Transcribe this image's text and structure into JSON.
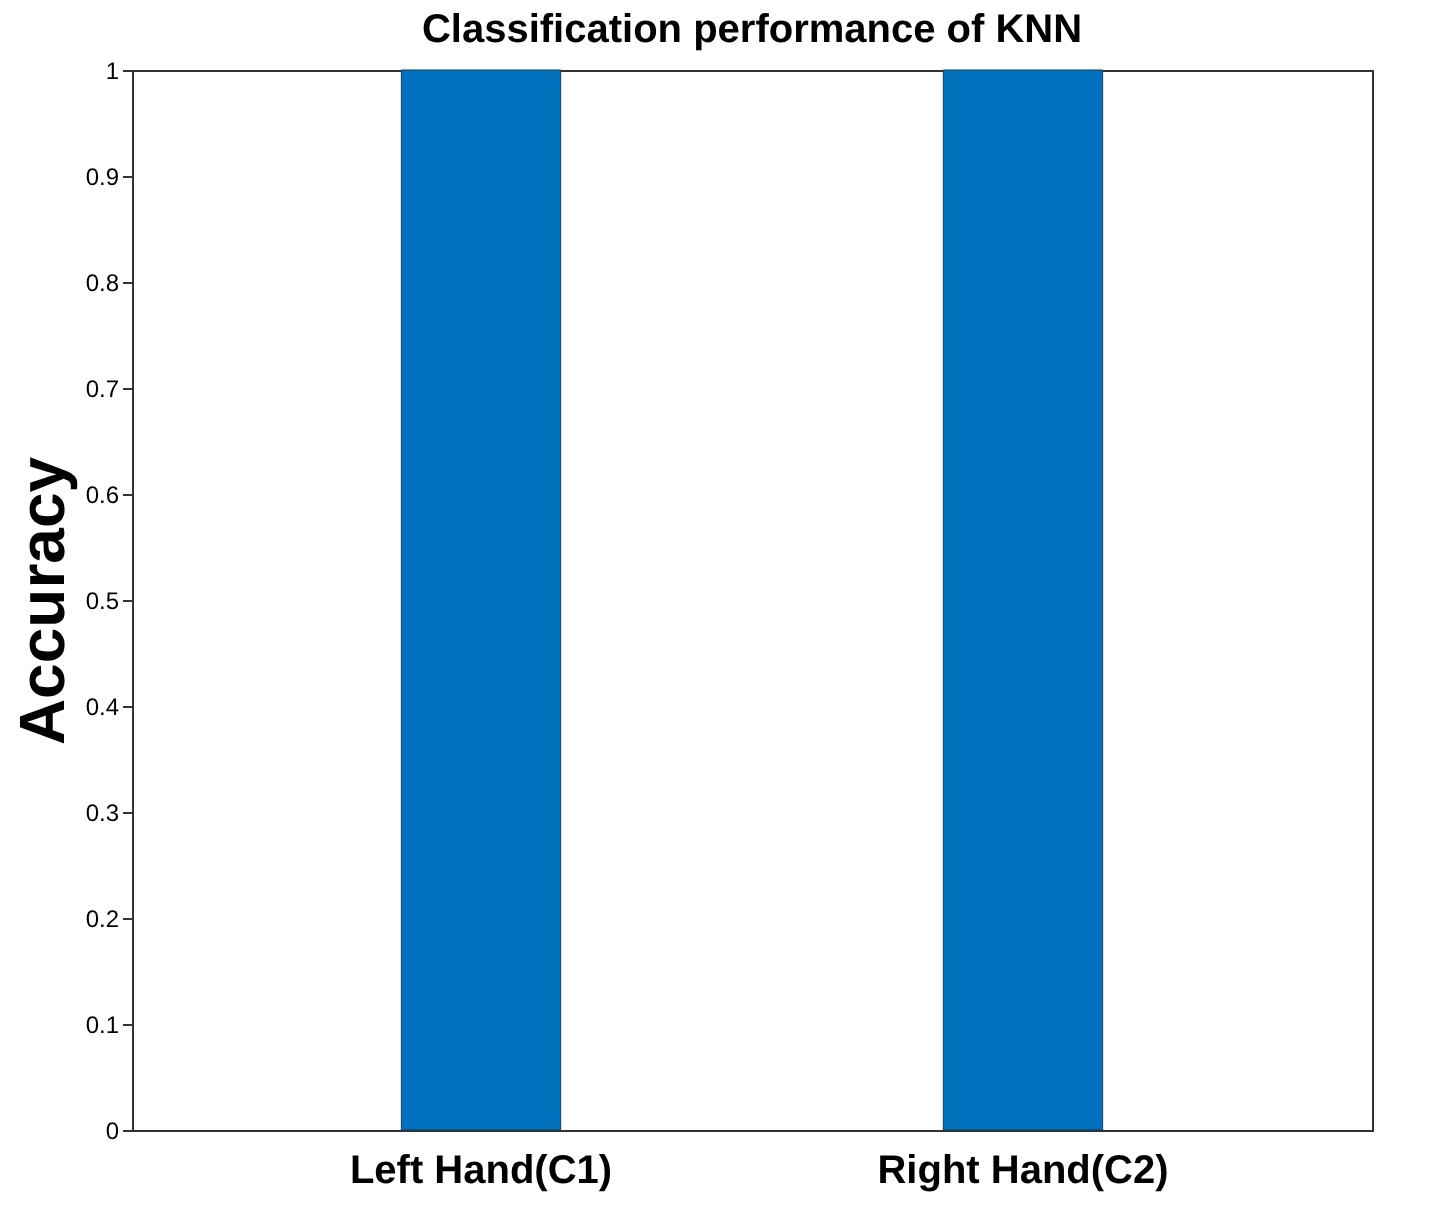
{
  "chart_data": {
    "type": "bar",
    "title": "Classification performance of KNN",
    "ylabel": "Accuracy",
    "categories": [
      "Left Hand(C1)",
      "Right Hand(C2)"
    ],
    "values": [
      1,
      1
    ],
    "color": "#0072bd",
    "ylim": [
      0,
      1
    ],
    "yticks": [
      0,
      0.1,
      0.2,
      0.3,
      0.4,
      0.5,
      0.6,
      0.7,
      0.8,
      0.9,
      1
    ],
    "grid": false
  }
}
